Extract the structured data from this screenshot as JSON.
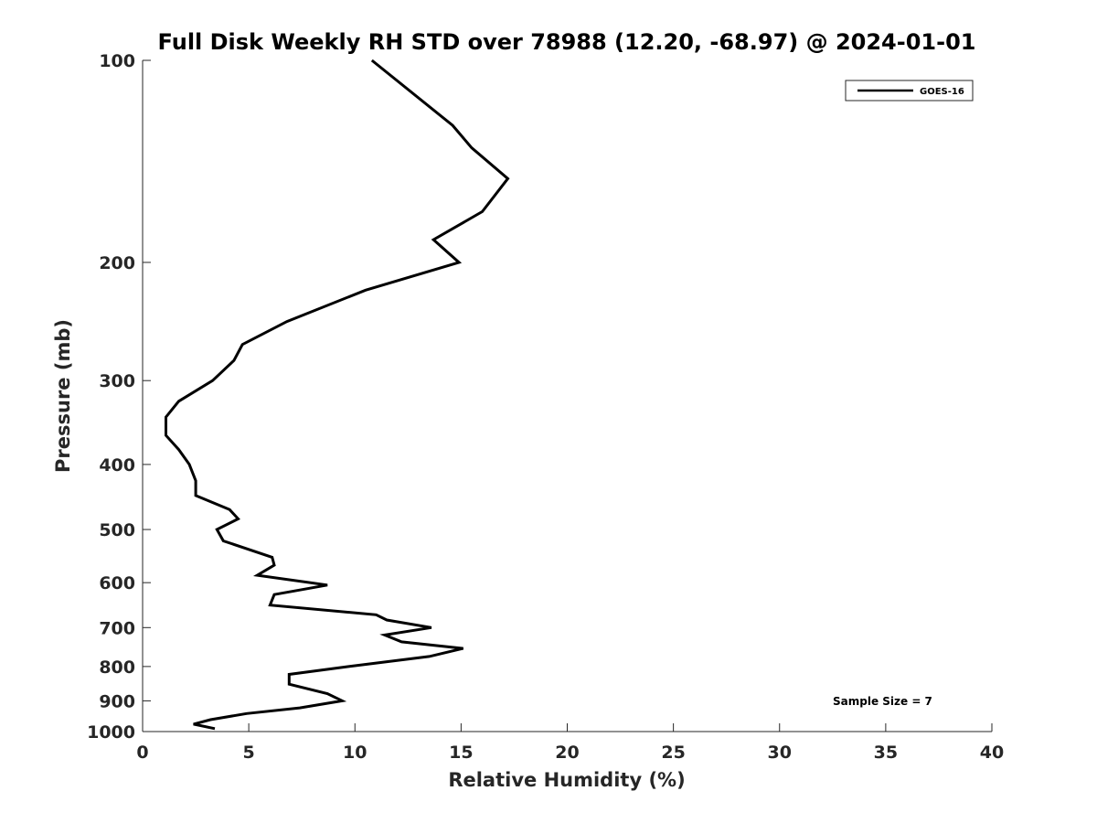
{
  "chart_data": {
    "type": "line",
    "title": "Full Disk Weekly RH STD over 78988 (12.20, -68.97) @ 2024-01-01",
    "xlabel": "Relative Humidity (%)",
    "ylabel": "Pressure (mb)",
    "xlim": [
      0,
      40
    ],
    "ylim": [
      100,
      1000
    ],
    "y_scale": "log",
    "y_reversed": true,
    "x_ticks": [
      0,
      5,
      10,
      15,
      20,
      25,
      30,
      35,
      40
    ],
    "y_ticks": [
      100,
      200,
      300,
      400,
      500,
      600,
      700,
      800,
      900,
      1000
    ],
    "grid": false,
    "legend_position": "top-right",
    "series": [
      {
        "name": "GOES-16",
        "color": "#000000",
        "points": [
          [
            10.8,
            100
          ],
          [
            14.6,
            125
          ],
          [
            15.5,
            135
          ],
          [
            17.2,
            150
          ],
          [
            16.0,
            168
          ],
          [
            13.7,
            185
          ],
          [
            14.9,
            200
          ],
          [
            10.5,
            220
          ],
          [
            6.8,
            245
          ],
          [
            4.7,
            265
          ],
          [
            4.3,
            280
          ],
          [
            3.3,
            300
          ],
          [
            1.7,
            322
          ],
          [
            1.1,
            340
          ],
          [
            1.1,
            362
          ],
          [
            1.7,
            380
          ],
          [
            2.2,
            400
          ],
          [
            2.5,
            423
          ],
          [
            2.5,
            445
          ],
          [
            4.1,
            467
          ],
          [
            4.5,
            482
          ],
          [
            3.5,
            500
          ],
          [
            3.8,
            520
          ],
          [
            6.1,
            550
          ],
          [
            6.2,
            565
          ],
          [
            5.4,
            585
          ],
          [
            8.7,
            605
          ],
          [
            6.2,
            625
          ],
          [
            6.0,
            648
          ],
          [
            11.0,
            670
          ],
          [
            11.5,
            682
          ],
          [
            13.6,
            700
          ],
          [
            11.4,
            718
          ],
          [
            12.2,
            735
          ],
          [
            15.1,
            752
          ],
          [
            13.5,
            773
          ],
          [
            9.7,
            800
          ],
          [
            6.9,
            822
          ],
          [
            6.9,
            850
          ],
          [
            8.7,
            878
          ],
          [
            9.4,
            900
          ],
          [
            7.4,
            922
          ],
          [
            4.9,
            940
          ],
          [
            3.2,
            960
          ],
          [
            2.4,
            975
          ],
          [
            3.4,
            990
          ]
        ]
      }
    ],
    "annotations": [
      "Sample Size = 7"
    ]
  }
}
